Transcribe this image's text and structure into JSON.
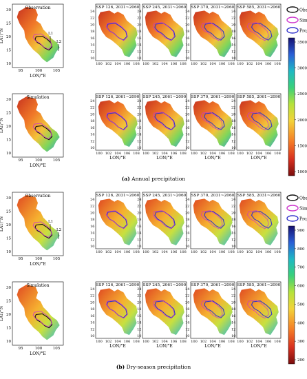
{
  "panels": [
    {
      "caption_letter": "(a)",
      "caption_text": " Annual precipitation",
      "rows": [
        [
          "Observation",
          "SSP 126, 2031~2060",
          "SSP 245, 2031~2060",
          "SSP 370, 2031~2060",
          "SSP 585, 2031~2060"
        ],
        [
          "Simulation",
          "SSP 126, 2061~2090",
          "SSP 245, 2061~2090",
          "SSP 370, 2061~2090",
          "SSP 585, 2061~2090"
        ]
      ],
      "colorbar_ticks": [
        "3500",
        "3000",
        "2500",
        "2000",
        "1500",
        "1000"
      ]
    },
    {
      "caption_letter": "(b)",
      "caption_text": " Dry-season precipitation",
      "rows": [
        [
          "Observation",
          "SSP 126, 2031~2060",
          "SSP 245, 2031~2060",
          "SSP 370, 2031~2060",
          "SSP 585, 2031~2060"
        ],
        [
          "Simulation",
          "SSP 126, 2061~2090",
          "SSP 245, 2061~2090",
          "SSP 370, 2061~2090",
          "SSP 585, 2061~2090"
        ]
      ],
      "colorbar_ticks": [
        "900",
        "800",
        "700",
        "600",
        "500",
        "400",
        "300",
        "200"
      ]
    }
  ],
  "legend": {
    "obs": "Obs",
    "sim": "Sim",
    "proj": "Proj"
  },
  "small_map": {
    "ylabel": "LAT/°N",
    "xlabel": "LON/°E",
    "yticks": [
      "30",
      "25",
      "20",
      "15",
      "10"
    ],
    "xticks": [
      "95",
      "100",
      "105"
    ],
    "line_labels": [
      "L1",
      "L2"
    ]
  },
  "big_map": {
    "xlabel": "LON/°E",
    "yticks": [
      "24",
      "22",
      "20",
      "18",
      "16",
      "14",
      "12",
      "10"
    ],
    "xticks": [
      "100",
      "102",
      "104",
      "106",
      "108"
    ]
  },
  "colors": {
    "contour_obs": "#111111",
    "contour_sim": "#cc33cc",
    "contour_proj": "#3333cc"
  }
}
